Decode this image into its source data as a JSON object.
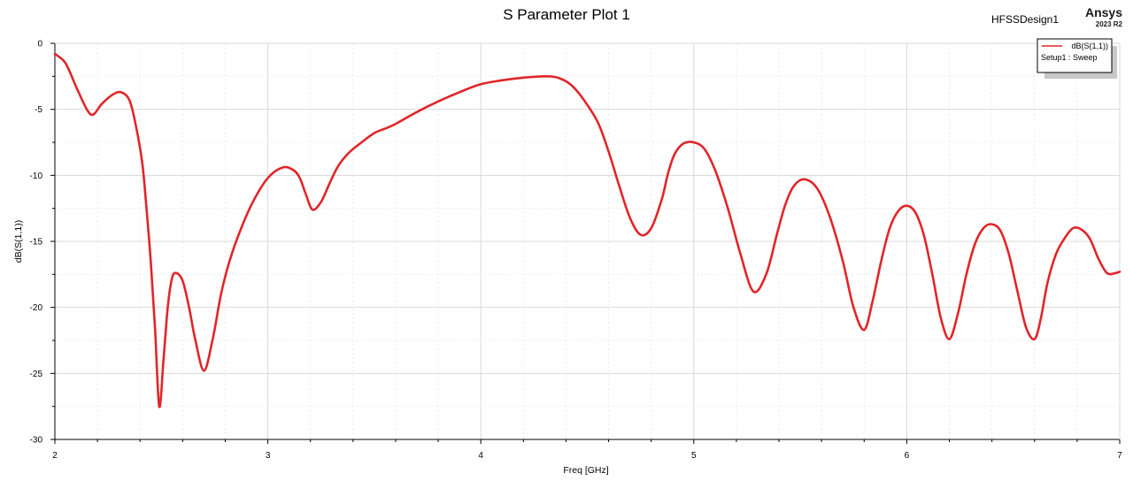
{
  "header": {
    "title": "S Parameter Plot 1",
    "design_name": "HFSSDesign1",
    "brand": "Ansys",
    "brand_version": "2023 R2"
  },
  "legend": {
    "series_label": "dB(S(1,1))",
    "setup_label": "Setup1 : Sweep"
  },
  "colors": {
    "series": "#e0262a",
    "grid": "#d9d9d9",
    "axis": "#000000"
  },
  "chart_data": {
    "type": "line",
    "title": "S Parameter Plot 1",
    "xlabel": "Freq [GHz]",
    "ylabel": "dB(S(1,1))",
    "xlim": [
      2,
      7
    ],
    "ylim": [
      -30,
      0
    ],
    "xticks": [
      2,
      3,
      4,
      5,
      6,
      7
    ],
    "yticks": [
      0,
      -5,
      -10,
      -15,
      -20,
      -25,
      -30
    ],
    "grid": true,
    "legend_position": "top-right",
    "series": [
      {
        "name": "dB(S(1,1))",
        "color": "#e0262a",
        "x": [
          2.0,
          2.05,
          2.1,
          2.15,
          2.18,
          2.22,
          2.27,
          2.31,
          2.35,
          2.38,
          2.41,
          2.43,
          2.45,
          2.47,
          2.49,
          2.51,
          2.53,
          2.55,
          2.57,
          2.6,
          2.63,
          2.66,
          2.7,
          2.74,
          2.78,
          2.82,
          2.87,
          2.93,
          3.0,
          3.07,
          3.12,
          3.15,
          3.18,
          3.21,
          3.25,
          3.29,
          3.33,
          3.38,
          3.44,
          3.5,
          3.56,
          3.6,
          3.7,
          3.8,
          3.9,
          4.0,
          4.1,
          4.2,
          4.3,
          4.36,
          4.42,
          4.48,
          4.55,
          4.6,
          4.65,
          4.7,
          4.75,
          4.8,
          4.85,
          4.88,
          4.91,
          4.95,
          5.0,
          5.05,
          5.1,
          5.16,
          5.22,
          5.28,
          5.34,
          5.39,
          5.43,
          5.47,
          5.52,
          5.58,
          5.64,
          5.7,
          5.75,
          5.8,
          5.84,
          5.88,
          5.92,
          5.96,
          6.0,
          6.04,
          6.08,
          6.12,
          6.16,
          6.2,
          6.24,
          6.28,
          6.32,
          6.36,
          6.4,
          6.44,
          6.48,
          6.52,
          6.56,
          6.6,
          6.63,
          6.66,
          6.7,
          6.74,
          6.78,
          6.82,
          6.86,
          6.9,
          6.94,
          6.98,
          7.0
        ],
        "values": [
          -0.8,
          -1.5,
          -3.3,
          -5.0,
          -5.4,
          -4.6,
          -3.9,
          -3.7,
          -4.3,
          -6.2,
          -9.0,
          -12.5,
          -16.5,
          -21.5,
          -27.5,
          -24.0,
          -20.0,
          -17.8,
          -17.4,
          -18.0,
          -20.0,
          -22.5,
          -24.8,
          -22.5,
          -19.0,
          -16.5,
          -14.2,
          -12.0,
          -10.2,
          -9.4,
          -9.6,
          -10.2,
          -11.5,
          -12.6,
          -12.0,
          -10.6,
          -9.3,
          -8.3,
          -7.5,
          -6.8,
          -6.4,
          -6.1,
          -5.2,
          -4.4,
          -3.7,
          -3.1,
          -2.8,
          -2.6,
          -2.5,
          -2.6,
          -3.1,
          -4.2,
          -6.0,
          -8.2,
          -10.8,
          -13.2,
          -14.5,
          -14.0,
          -11.8,
          -9.8,
          -8.4,
          -7.6,
          -7.5,
          -8.0,
          -9.6,
          -12.5,
          -16.0,
          -18.8,
          -17.5,
          -14.5,
          -12.2,
          -10.8,
          -10.3,
          -11.0,
          -13.2,
          -16.5,
          -20.0,
          -21.7,
          -19.5,
          -16.5,
          -14.0,
          -12.7,
          -12.3,
          -12.8,
          -14.5,
          -17.5,
          -20.8,
          -22.4,
          -20.5,
          -17.5,
          -15.2,
          -14.0,
          -13.7,
          -14.2,
          -16.0,
          -18.8,
          -21.5,
          -22.4,
          -20.8,
          -18.2,
          -16.0,
          -14.8,
          -14.0,
          -14.1,
          -14.8,
          -16.3,
          -17.4,
          -17.4,
          -17.3
        ]
      }
    ]
  }
}
